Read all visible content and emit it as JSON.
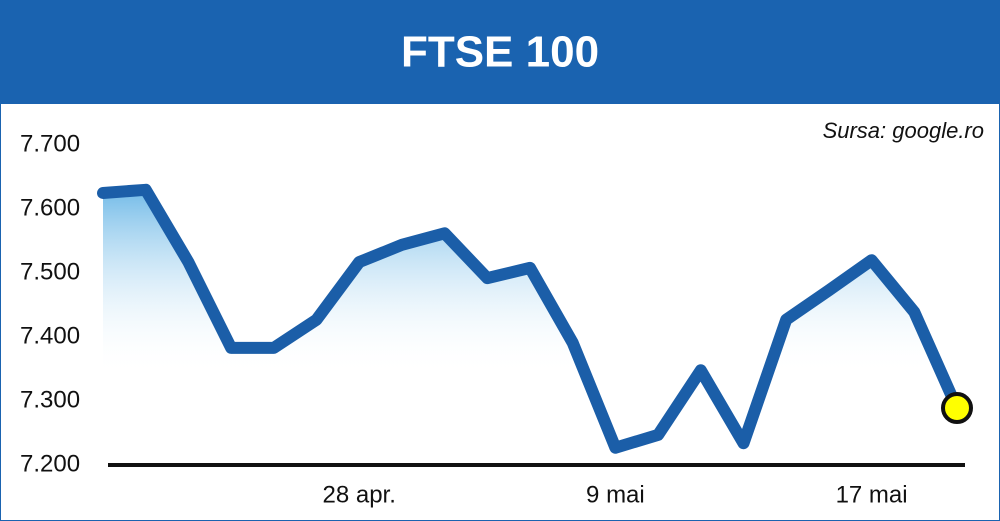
{
  "chart_data": {
    "type": "line",
    "title": "FTSE 100",
    "source": "Sursa: google.ro",
    "categories": [
      null,
      null,
      null,
      null,
      null,
      null,
      "28 apr.",
      null,
      null,
      null,
      null,
      null,
      "9 mai",
      null,
      null,
      null,
      null,
      null,
      "17 mai",
      null,
      null
    ],
    "values": [
      7625,
      7630,
      7517,
      7383,
      7383,
      7427,
      7517,
      7544,
      7562,
      7492,
      7508,
      7391,
      7227,
      7247,
      7348,
      7234,
      7427,
      7473,
      7520,
      7439,
      7289
    ],
    "color": "#1b5ea8",
    "area_color": "#5cb0e4",
    "end_marker_color": "#ffff00",
    "ylim": [
      7200,
      7700
    ],
    "yticks": [
      {
        "value": 7200,
        "label": "7.200"
      },
      {
        "value": 7300,
        "label": "7.300"
      },
      {
        "value": 7400,
        "label": "7.400"
      },
      {
        "value": 7500,
        "label": "7.500"
      },
      {
        "value": 7600,
        "label": "7.600"
      },
      {
        "value": 7700,
        "label": "7.700"
      }
    ],
    "grid": false
  }
}
